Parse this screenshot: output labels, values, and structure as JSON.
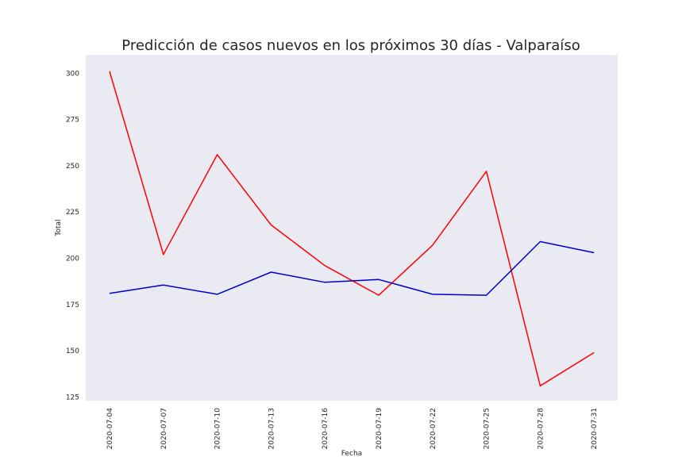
{
  "chart_data": {
    "type": "line",
    "title": "Predicción de casos nuevos en los próximos 30 días - Valparaíso",
    "xlabel": "Fecha",
    "ylabel": "Total",
    "x": [
      "2020-07-04",
      "2020-07-07",
      "2020-07-10",
      "2020-07-13",
      "2020-07-16",
      "2020-07-19",
      "2020-07-22",
      "2020-07-25",
      "2020-07-28",
      "2020-07-31"
    ],
    "yticks": [
      125,
      150,
      175,
      200,
      225,
      250,
      275,
      300
    ],
    "ylim": [
      123,
      310
    ],
    "grid": false,
    "background": "#eaeaf2",
    "series": [
      {
        "color": "#ff0000",
        "values": [
          301,
          202,
          256,
          218,
          196,
          180,
          207,
          247,
          131,
          149
        ]
      },
      {
        "color": "#0000cd",
        "values": [
          181,
          185.5,
          180.5,
          192.5,
          187,
          188.5,
          180.5,
          180,
          209,
          203
        ]
      }
    ]
  }
}
